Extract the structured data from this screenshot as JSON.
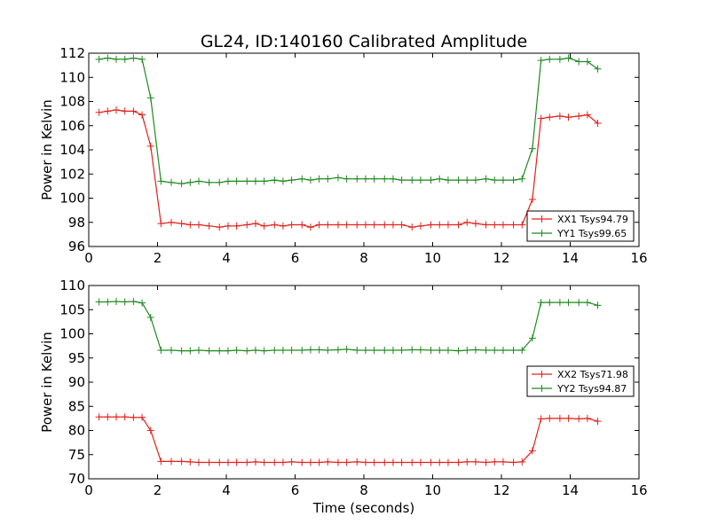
{
  "chart_data": [
    {
      "type": "line",
      "title": "GL24, ID:140160 Calibrated Amplitude",
      "xlabel": "",
      "ylabel": "Power in Kelvin",
      "xlim": [
        0,
        16
      ],
      "ylim": [
        96,
        112
      ],
      "xticks": [
        0,
        2,
        4,
        6,
        8,
        10,
        12,
        14,
        16
      ],
      "yticks": [
        96,
        98,
        100,
        102,
        104,
        106,
        108,
        110,
        112
      ],
      "legend_position": "lower-right",
      "x": [
        0.3,
        0.55,
        0.8,
        1.05,
        1.3,
        1.55,
        1.8,
        2.1,
        2.4,
        2.7,
        2.95,
        3.2,
        3.5,
        3.8,
        4.05,
        4.3,
        4.6,
        4.85,
        5.1,
        5.4,
        5.65,
        5.9,
        6.2,
        6.45,
        6.7,
        6.95,
        7.25,
        7.5,
        7.8,
        8.05,
        8.3,
        8.6,
        8.85,
        9.1,
        9.4,
        9.65,
        9.95,
        10.2,
        10.45,
        10.75,
        11.0,
        11.25,
        11.55,
        11.8,
        12.05,
        12.35,
        12.6,
        12.9,
        13.15,
        13.4,
        13.7,
        13.95,
        14.25,
        14.5,
        14.8
      ],
      "series": [
        {
          "name": "XX1 Tsys94.79",
          "color": "#e3201a",
          "values": [
            107.1,
            107.2,
            107.3,
            107.2,
            107.2,
            106.9,
            104.3,
            97.9,
            98.0,
            97.9,
            97.8,
            97.8,
            97.7,
            97.6,
            97.7,
            97.7,
            97.8,
            97.9,
            97.7,
            97.8,
            97.7,
            97.8,
            97.8,
            97.6,
            97.8,
            97.8,
            97.8,
            97.8,
            97.8,
            97.8,
            97.8,
            97.8,
            97.8,
            97.8,
            97.6,
            97.7,
            97.8,
            97.8,
            97.8,
            97.8,
            98.0,
            97.9,
            97.8,
            97.8,
            97.8,
            97.8,
            97.8,
            99.9,
            106.6,
            106.7,
            106.8,
            106.7,
            106.8,
            106.9,
            106.2
          ]
        },
        {
          "name": "YY1 Tsys99.65",
          "color": "#1f8a1f",
          "values": [
            111.5,
            111.6,
            111.5,
            111.5,
            111.6,
            111.5,
            108.3,
            101.4,
            101.3,
            101.2,
            101.3,
            101.4,
            101.3,
            101.3,
            101.4,
            101.4,
            101.4,
            101.4,
            101.4,
            101.5,
            101.4,
            101.5,
            101.6,
            101.5,
            101.6,
            101.6,
            101.7,
            101.6,
            101.6,
            101.6,
            101.6,
            101.6,
            101.6,
            101.5,
            101.5,
            101.5,
            101.5,
            101.6,
            101.5,
            101.5,
            101.5,
            101.5,
            101.6,
            101.5,
            101.5,
            101.5,
            101.6,
            104.1,
            111.4,
            111.5,
            111.5,
            111.6,
            111.3,
            111.3,
            110.7
          ]
        }
      ]
    },
    {
      "type": "line",
      "title": "",
      "xlabel": "Time (seconds)",
      "ylabel": "Power in Kelvin",
      "xlim": [
        0,
        16
      ],
      "ylim": [
        70,
        110
      ],
      "xticks": [
        0,
        2,
        4,
        6,
        8,
        10,
        12,
        14,
        16
      ],
      "yticks": [
        70,
        75,
        80,
        85,
        90,
        95,
        100,
        105,
        110
      ],
      "legend_position": "center-right",
      "x": [
        0.3,
        0.55,
        0.8,
        1.05,
        1.3,
        1.55,
        1.8,
        2.1,
        2.4,
        2.7,
        2.95,
        3.2,
        3.5,
        3.8,
        4.05,
        4.3,
        4.6,
        4.85,
        5.1,
        5.4,
        5.65,
        5.9,
        6.2,
        6.45,
        6.7,
        6.95,
        7.25,
        7.5,
        7.8,
        8.05,
        8.3,
        8.6,
        8.85,
        9.1,
        9.4,
        9.65,
        9.95,
        10.2,
        10.45,
        10.75,
        11.0,
        11.25,
        11.55,
        11.8,
        12.05,
        12.35,
        12.6,
        12.9,
        13.15,
        13.4,
        13.7,
        13.95,
        14.25,
        14.5,
        14.8
      ],
      "series": [
        {
          "name": "XX2 Tsys71.98",
          "color": "#e3201a",
          "values": [
            82.8,
            82.8,
            82.8,
            82.8,
            82.7,
            82.7,
            80.0,
            73.6,
            73.6,
            73.6,
            73.5,
            73.4,
            73.4,
            73.4,
            73.4,
            73.4,
            73.4,
            73.5,
            73.4,
            73.4,
            73.4,
            73.5,
            73.4,
            73.4,
            73.4,
            73.5,
            73.4,
            73.4,
            73.5,
            73.4,
            73.4,
            73.4,
            73.4,
            73.4,
            73.4,
            73.4,
            73.4,
            73.4,
            73.4,
            73.4,
            73.5,
            73.5,
            73.4,
            73.5,
            73.5,
            73.4,
            73.5,
            75.8,
            82.4,
            82.5,
            82.5,
            82.5,
            82.4,
            82.5,
            81.9
          ]
        },
        {
          "name": "YY2 Tsys94.87",
          "color": "#1f8a1f",
          "values": [
            106.6,
            106.6,
            106.7,
            106.6,
            106.7,
            106.4,
            103.4,
            96.6,
            96.6,
            96.5,
            96.5,
            96.6,
            96.5,
            96.5,
            96.5,
            96.6,
            96.5,
            96.6,
            96.5,
            96.6,
            96.6,
            96.6,
            96.6,
            96.7,
            96.7,
            96.6,
            96.7,
            96.8,
            96.6,
            96.6,
            96.6,
            96.6,
            96.6,
            96.6,
            96.7,
            96.7,
            96.6,
            96.6,
            96.6,
            96.5,
            96.6,
            96.7,
            96.6,
            96.6,
            96.6,
            96.6,
            96.6,
            99.1,
            106.5,
            106.5,
            106.5,
            106.5,
            106.5,
            106.5,
            105.9
          ]
        }
      ]
    }
  ]
}
